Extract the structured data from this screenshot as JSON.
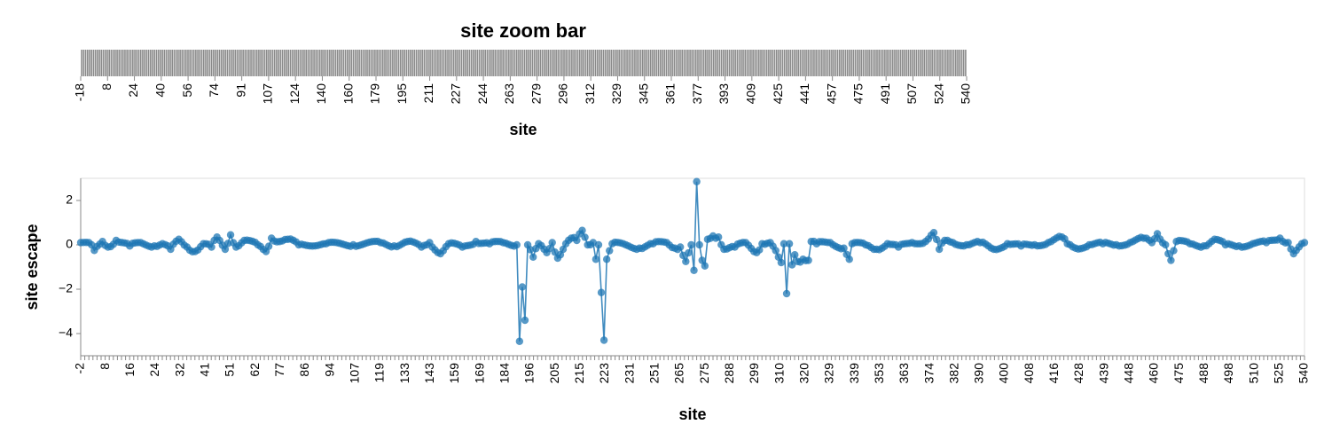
{
  "chart_data": [
    {
      "type": "bar",
      "role": "zoom-brush",
      "title": "site zoom bar",
      "xlabel": "site",
      "ylabel": "",
      "x_tick_labels": [
        "-18",
        "8",
        "24",
        "40",
        "56",
        "74",
        "91",
        "107",
        "124",
        "140",
        "160",
        "179",
        "195",
        "211",
        "227",
        "244",
        "263",
        "279",
        "296",
        "312",
        "329",
        "345",
        "361",
        "377",
        "393",
        "409",
        "425",
        "441",
        "457",
        "475",
        "491",
        "507",
        "524",
        "540"
      ],
      "bar_color": "#8a8a8a"
    },
    {
      "type": "line",
      "title": "",
      "xlabel": "site",
      "ylabel": "site escape",
      "ylim": [
        -5,
        3
      ],
      "y_ticks": [
        2,
        0,
        -2,
        -4
      ],
      "y_tick_labels": [
        "2",
        "0",
        "−2",
        "−4"
      ],
      "x_tick_labels": [
        "-2",
        "8",
        "16",
        "24",
        "32",
        "41",
        "51",
        "62",
        "77",
        "86",
        "94",
        "107",
        "119",
        "133",
        "143",
        "159",
        "169",
        "184",
        "196",
        "205",
        "215",
        "223",
        "231",
        "251",
        "265",
        "275",
        "288",
        "299",
        "310",
        "320",
        "329",
        "339",
        "353",
        "363",
        "374",
        "382",
        "390",
        "400",
        "408",
        "416",
        "428",
        "439",
        "448",
        "460",
        "475",
        "488",
        "498",
        "510",
        "525",
        "540"
      ],
      "point_count": 450,
      "color": "#1f77b4",
      "grid": false,
      "series": [
        {
          "values": [
            {
              "i": 0,
              "y": 0.1
            },
            {
              "i": 4,
              "y": 0.0
            },
            {
              "i": 5,
              "y": -0.25
            },
            {
              "i": 8,
              "y": 0.15
            },
            {
              "i": 10,
              "y": -0.1
            },
            {
              "i": 13,
              "y": 0.2
            },
            {
              "i": 18,
              "y": -0.05
            },
            {
              "i": 22,
              "y": 0.1
            },
            {
              "i": 27,
              "y": -0.05
            },
            {
              "i": 30,
              "y": 0.05
            },
            {
              "i": 33,
              "y": -0.2
            },
            {
              "i": 36,
              "y": 0.25
            },
            {
              "i": 39,
              "y": -0.1
            },
            {
              "i": 42,
              "y": -0.3
            },
            {
              "i": 45,
              "y": 0.05
            },
            {
              "i": 48,
              "y": -0.1
            },
            {
              "i": 50,
              "y": 0.35
            },
            {
              "i": 53,
              "y": -0.2
            },
            {
              "i": 55,
              "y": 0.45
            },
            {
              "i": 57,
              "y": -0.1
            },
            {
              "i": 60,
              "y": 0.2
            },
            {
              "i": 65,
              "y": 0.0
            },
            {
              "i": 68,
              "y": -0.3
            },
            {
              "i": 70,
              "y": 0.3
            },
            {
              "i": 73,
              "y": 0.15
            },
            {
              "i": 76,
              "y": 0.25
            },
            {
              "i": 80,
              "y": 0.0
            },
            {
              "i": 90,
              "y": 0.05
            },
            {
              "i": 100,
              "y": 0.0
            },
            {
              "i": 110,
              "y": 0.1
            },
            {
              "i": 115,
              "y": -0.05
            },
            {
              "i": 120,
              "y": 0.15
            },
            {
              "i": 125,
              "y": -0.1
            },
            {
              "i": 128,
              "y": 0.1
            },
            {
              "i": 132,
              "y": -0.4
            },
            {
              "i": 135,
              "y": 0.05
            },
            {
              "i": 140,
              "y": -0.1
            },
            {
              "i": 145,
              "y": 0.15
            },
            {
              "i": 150,
              "y": 0.05
            },
            {
              "i": 155,
              "y": 0.1
            },
            {
              "i": 160,
              "y": 0.0
            },
            {
              "i": 161,
              "y": -4.35
            },
            {
              "i": 162,
              "y": -1.9
            },
            {
              "i": 163,
              "y": -3.4
            },
            {
              "i": 164,
              "y": 0.0
            },
            {
              "i": 166,
              "y": -0.55
            },
            {
              "i": 168,
              "y": 0.05
            },
            {
              "i": 171,
              "y": -0.35
            },
            {
              "i": 173,
              "y": 0.1
            },
            {
              "i": 175,
              "y": -0.6
            },
            {
              "i": 178,
              "y": 0.05
            },
            {
              "i": 180,
              "y": 0.3
            },
            {
              "i": 182,
              "y": 0.2
            },
            {
              "i": 184,
              "y": 0.65
            },
            {
              "i": 186,
              "y": 0.0
            },
            {
              "i": 188,
              "y": 0.1
            },
            {
              "i": 189,
              "y": -0.65
            },
            {
              "i": 190,
              "y": 0.0
            },
            {
              "i": 191,
              "y": -2.15
            },
            {
              "i": 192,
              "y": -4.3
            },
            {
              "i": 193,
              "y": -0.65
            },
            {
              "i": 195,
              "y": 0.05
            },
            {
              "i": 200,
              "y": 0.0
            },
            {
              "i": 205,
              "y": -0.15
            },
            {
              "i": 210,
              "y": 0.05
            },
            {
              "i": 215,
              "y": 0.1
            },
            {
              "i": 218,
              "y": -0.15
            },
            {
              "i": 220,
              "y": -0.1
            },
            {
              "i": 222,
              "y": -0.75
            },
            {
              "i": 224,
              "y": 0.0
            },
            {
              "i": 225,
              "y": -1.15
            },
            {
              "i": 226,
              "y": 2.85
            },
            {
              "i": 227,
              "y": 0.0
            },
            {
              "i": 228,
              "y": -0.7
            },
            {
              "i": 229,
              "y": -0.95
            },
            {
              "i": 230,
              "y": 0.25
            },
            {
              "i": 232,
              "y": 0.4
            },
            {
              "i": 234,
              "y": 0.35
            },
            {
              "i": 236,
              "y": -0.2
            },
            {
              "i": 240,
              "y": -0.1
            },
            {
              "i": 244,
              "y": 0.1
            },
            {
              "i": 248,
              "y": -0.35
            },
            {
              "i": 250,
              "y": 0.05
            },
            {
              "i": 253,
              "y": 0.1
            },
            {
              "i": 256,
              "y": -0.55
            },
            {
              "i": 257,
              "y": -0.8
            },
            {
              "i": 258,
              "y": 0.05
            },
            {
              "i": 259,
              "y": -2.2
            },
            {
              "i": 260,
              "y": 0.05
            },
            {
              "i": 261,
              "y": -0.9
            },
            {
              "i": 262,
              "y": -0.45
            },
            {
              "i": 263,
              "y": -0.75
            },
            {
              "i": 265,
              "y": -0.65
            },
            {
              "i": 267,
              "y": -0.7
            },
            {
              "i": 268,
              "y": 0.15
            },
            {
              "i": 270,
              "y": 0.05
            },
            {
              "i": 275,
              "y": 0.1
            },
            {
              "i": 280,
              "y": -0.15
            },
            {
              "i": 282,
              "y": -0.65
            },
            {
              "i": 283,
              "y": 0.05
            },
            {
              "i": 288,
              "y": 0.0
            },
            {
              "i": 292,
              "y": -0.2
            },
            {
              "i": 296,
              "y": 0.05
            },
            {
              "i": 300,
              "y": -0.1
            },
            {
              "i": 305,
              "y": 0.1
            },
            {
              "i": 310,
              "y": 0.15
            },
            {
              "i": 313,
              "y": 0.55
            },
            {
              "i": 315,
              "y": -0.2
            },
            {
              "i": 317,
              "y": 0.2
            },
            {
              "i": 320,
              "y": 0.1
            },
            {
              "i": 325,
              "y": 0.0
            },
            {
              "i": 330,
              "y": 0.1
            },
            {
              "i": 335,
              "y": -0.2
            },
            {
              "i": 340,
              "y": 0.05
            },
            {
              "i": 345,
              "y": -0.05
            },
            {
              "i": 350,
              "y": 0.0
            },
            {
              "i": 355,
              "y": 0.1
            },
            {
              "i": 360,
              "y": 0.35
            },
            {
              "i": 362,
              "y": 0.05
            },
            {
              "i": 365,
              "y": -0.15
            },
            {
              "i": 370,
              "y": 0.0
            },
            {
              "i": 375,
              "y": 0.05
            },
            {
              "i": 380,
              "y": 0.0
            },
            {
              "i": 385,
              "y": 0.1
            },
            {
              "i": 390,
              "y": 0.3
            },
            {
              "i": 393,
              "y": 0.1
            },
            {
              "i": 395,
              "y": 0.5
            },
            {
              "i": 398,
              "y": 0.0
            },
            {
              "i": 400,
              "y": -0.7
            },
            {
              "i": 402,
              "y": 0.15
            },
            {
              "i": 407,
              "y": 0.05
            },
            {
              "i": 412,
              "y": -0.05
            },
            {
              "i": 416,
              "y": 0.25
            },
            {
              "i": 420,
              "y": 0.0
            },
            {
              "i": 425,
              "y": -0.05
            },
            {
              "i": 430,
              "y": 0.05
            },
            {
              "i": 435,
              "y": 0.1
            },
            {
              "i": 440,
              "y": 0.3
            },
            {
              "i": 443,
              "y": 0.1
            },
            {
              "i": 445,
              "y": -0.4
            },
            {
              "i": 449,
              "y": 0.1
            }
          ]
        }
      ]
    }
  ]
}
